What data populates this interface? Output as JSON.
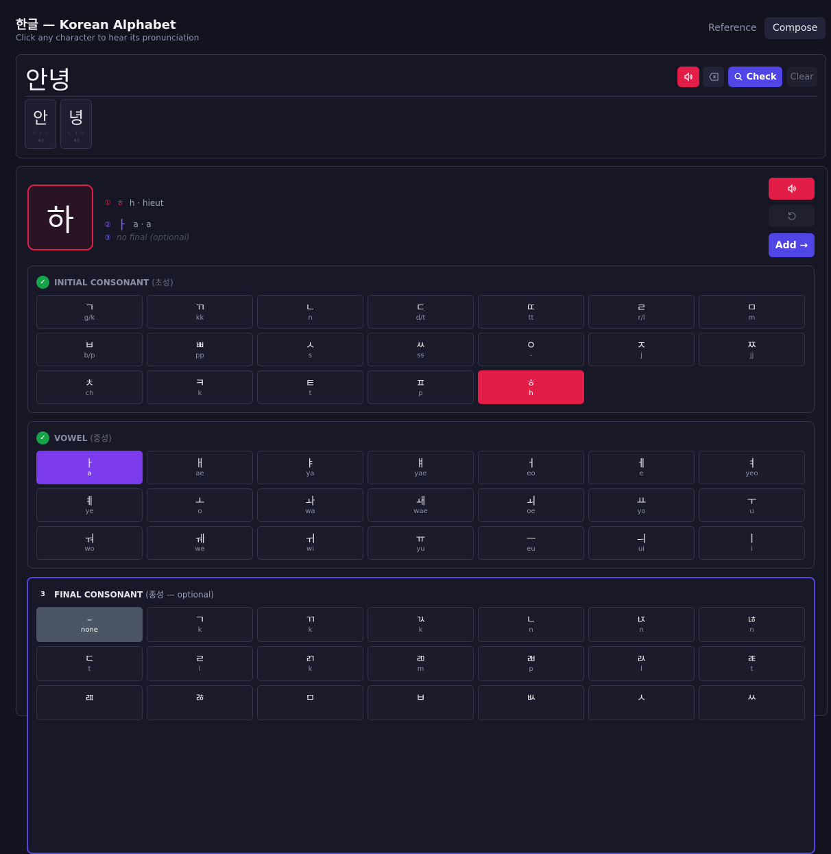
{
  "header": {
    "title": "한글 — Korean Alphabet",
    "subtitle": "Click any character to hear its pronunciation",
    "tabs": [
      "Reference",
      "Compose"
    ]
  },
  "composer": {
    "text": "안녕",
    "check": "Check",
    "clear": "Clear",
    "syllables": [
      {
        "char": "안",
        "parts": "ㅇ ㅏ ㄴ"
      },
      {
        "char": "녕",
        "parts": "ㄴ ㅕ ㅇ"
      }
    ]
  },
  "builder": {
    "preview": "하",
    "add": "Add →",
    "steps": [
      {
        "num": "①",
        "jamo": "ㅎ",
        "text": "h · hieut"
      },
      {
        "num": "②",
        "jamo": "ㅏ",
        "text": "a · a"
      },
      {
        "num": "③",
        "text": "no final (optional)"
      }
    ]
  },
  "sections": [
    {
      "badge": "✓",
      "title": "INITIAL CONSONANT",
      "sub": "(초성)",
      "keys": [
        {
          "jamo": "ㄱ",
          "roman": "g/k"
        },
        {
          "jamo": "ㄲ",
          "roman": "kk"
        },
        {
          "jamo": "ㄴ",
          "roman": "n"
        },
        {
          "jamo": "ㄷ",
          "roman": "d/t"
        },
        {
          "jamo": "ㄸ",
          "roman": "tt"
        },
        {
          "jamo": "ㄹ",
          "roman": "r/l"
        },
        {
          "jamo": "ㅁ",
          "roman": "m"
        },
        {
          "jamo": "ㅂ",
          "roman": "b/p"
        },
        {
          "jamo": "ㅃ",
          "roman": "pp"
        },
        {
          "jamo": "ㅅ",
          "roman": "s"
        },
        {
          "jamo": "ㅆ",
          "roman": "ss"
        },
        {
          "jamo": "ㅇ",
          "roman": "-"
        },
        {
          "jamo": "ㅈ",
          "roman": "j"
        },
        {
          "jamo": "ㅉ",
          "roman": "jj"
        },
        {
          "jamo": "ㅊ",
          "roman": "ch"
        },
        {
          "jamo": "ㅋ",
          "roman": "k"
        },
        {
          "jamo": "ㅌ",
          "roman": "t"
        },
        {
          "jamo": "ㅍ",
          "roman": "p"
        },
        {
          "jamo": "ㅎ",
          "roman": "h",
          "selected": true
        }
      ]
    },
    {
      "badge": "✓",
      "title": "VOWEL",
      "sub": "(중성)",
      "keys": [
        {
          "jamo": "ㅏ",
          "roman": "a",
          "selected": true
        },
        {
          "jamo": "ㅐ",
          "roman": "ae"
        },
        {
          "jamo": "ㅑ",
          "roman": "ya"
        },
        {
          "jamo": "ㅒ",
          "roman": "yae"
        },
        {
          "jamo": "ㅓ",
          "roman": "eo"
        },
        {
          "jamo": "ㅔ",
          "roman": "e"
        },
        {
          "jamo": "ㅕ",
          "roman": "yeo"
        },
        {
          "jamo": "ㅖ",
          "roman": "ye"
        },
        {
          "jamo": "ㅗ",
          "roman": "o"
        },
        {
          "jamo": "ㅘ",
          "roman": "wa"
        },
        {
          "jamo": "ㅙ",
          "roman": "wae"
        },
        {
          "jamo": "ㅚ",
          "roman": "oe"
        },
        {
          "jamo": "ㅛ",
          "roman": "yo"
        },
        {
          "jamo": "ㅜ",
          "roman": "u"
        },
        {
          "jamo": "ㅝ",
          "roman": "wo"
        },
        {
          "jamo": "ㅞ",
          "roman": "we"
        },
        {
          "jamo": "ㅟ",
          "roman": "wi"
        },
        {
          "jamo": "ㅠ",
          "roman": "yu"
        },
        {
          "jamo": "ㅡ",
          "roman": "eu"
        },
        {
          "jamo": "ㅢ",
          "roman": "ui"
        },
        {
          "jamo": "ㅣ",
          "roman": "i"
        }
      ]
    },
    {
      "badge": "3",
      "title": "FINAL CONSONANT",
      "sub": "(종성 — optional)",
      "keys": [
        {
          "jamo": "–",
          "roman": "none",
          "selected": true
        },
        {
          "jamo": "ㄱ",
          "roman": "k"
        },
        {
          "jamo": "ㄲ",
          "roman": "k"
        },
        {
          "jamo": "ㄳ",
          "roman": "k"
        },
        {
          "jamo": "ㄴ",
          "roman": "n"
        },
        {
          "jamo": "ㄵ",
          "roman": "n"
        },
        {
          "jamo": "ㄶ",
          "roman": "n"
        },
        {
          "jamo": "ㄷ",
          "roman": "t"
        },
        {
          "jamo": "ㄹ",
          "roman": "l"
        },
        {
          "jamo": "ㄺ",
          "roman": "k"
        },
        {
          "jamo": "ㄻ",
          "roman": "m"
        },
        {
          "jamo": "ㄼ",
          "roman": "p"
        },
        {
          "jamo": "ㄽ",
          "roman": "l"
        },
        {
          "jamo": "ㄾ",
          "roman": "t"
        },
        {
          "jamo": "ㄿ"
        },
        {
          "jamo": "ㅀ"
        },
        {
          "jamo": "ㅁ"
        },
        {
          "jamo": "ㅂ"
        },
        {
          "jamo": "ㅄ"
        },
        {
          "jamo": "ㅅ"
        },
        {
          "jamo": "ㅆ"
        }
      ]
    }
  ]
}
